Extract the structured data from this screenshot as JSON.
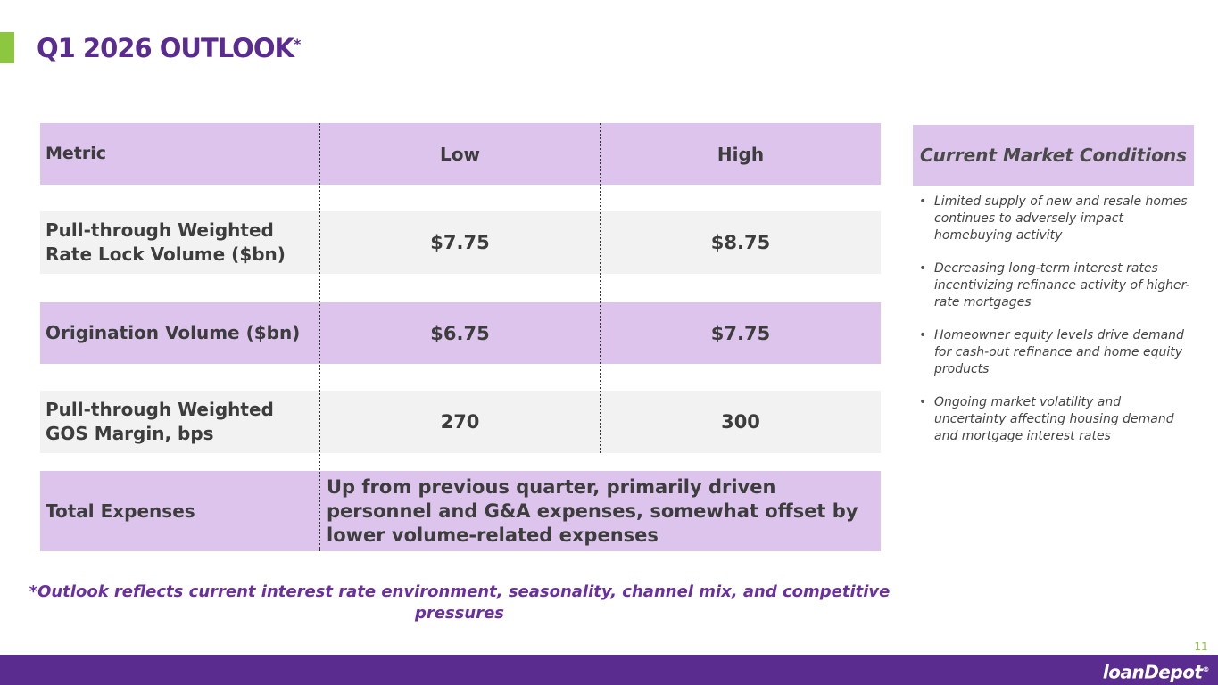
{
  "slide": {
    "title": "Q1 2026 OUTLOOK",
    "title_mark": "*",
    "page_number": "11",
    "logo_text": "loanDepot",
    "logo_mark": "®"
  },
  "table": {
    "headers": {
      "metric": "Metric",
      "low": "Low",
      "high": "High"
    },
    "rows": [
      {
        "metric": "Pull-through Weighted Rate Lock Volume ($bn)",
        "low": "$7.75",
        "high": "$8.75"
      },
      {
        "metric": "Origination Volume ($bn)",
        "low": "$6.75",
        "high": "$7.75"
      },
      {
        "metric": "Pull-through Weighted GOS Margin, bps",
        "low": "270",
        "high": "300"
      }
    ],
    "expenses": {
      "metric": "Total Expenses",
      "description": "Up from previous quarter, primarily driven personnel and G&A expenses, somewhat offset by lower volume-related expenses"
    }
  },
  "market_conditions": {
    "title": "Current Market Conditions",
    "bullet_glyph": "•",
    "items": [
      "Limited supply of new and resale homes continues to adversely impact homebuying activity",
      "Decreasing long-term interest rates incentivizing refinance activity of higher-rate mortgages",
      "Homeowner equity levels drive demand for cash-out refinance and home equity products",
      "Ongoing market volatility and uncertainty affecting housing demand and mortgage interest rates"
    ]
  },
  "footnote": "*Outlook reflects current interest rate environment, seasonality, channel mix, and competitive pressures",
  "colors": {
    "brand_purple": "#5b2c8f",
    "row_purple": "#dcc4ec",
    "row_grey": "#f2f2f2",
    "accent_green": "#8dc63f",
    "footnote_purple": "#6a2fa0"
  }
}
